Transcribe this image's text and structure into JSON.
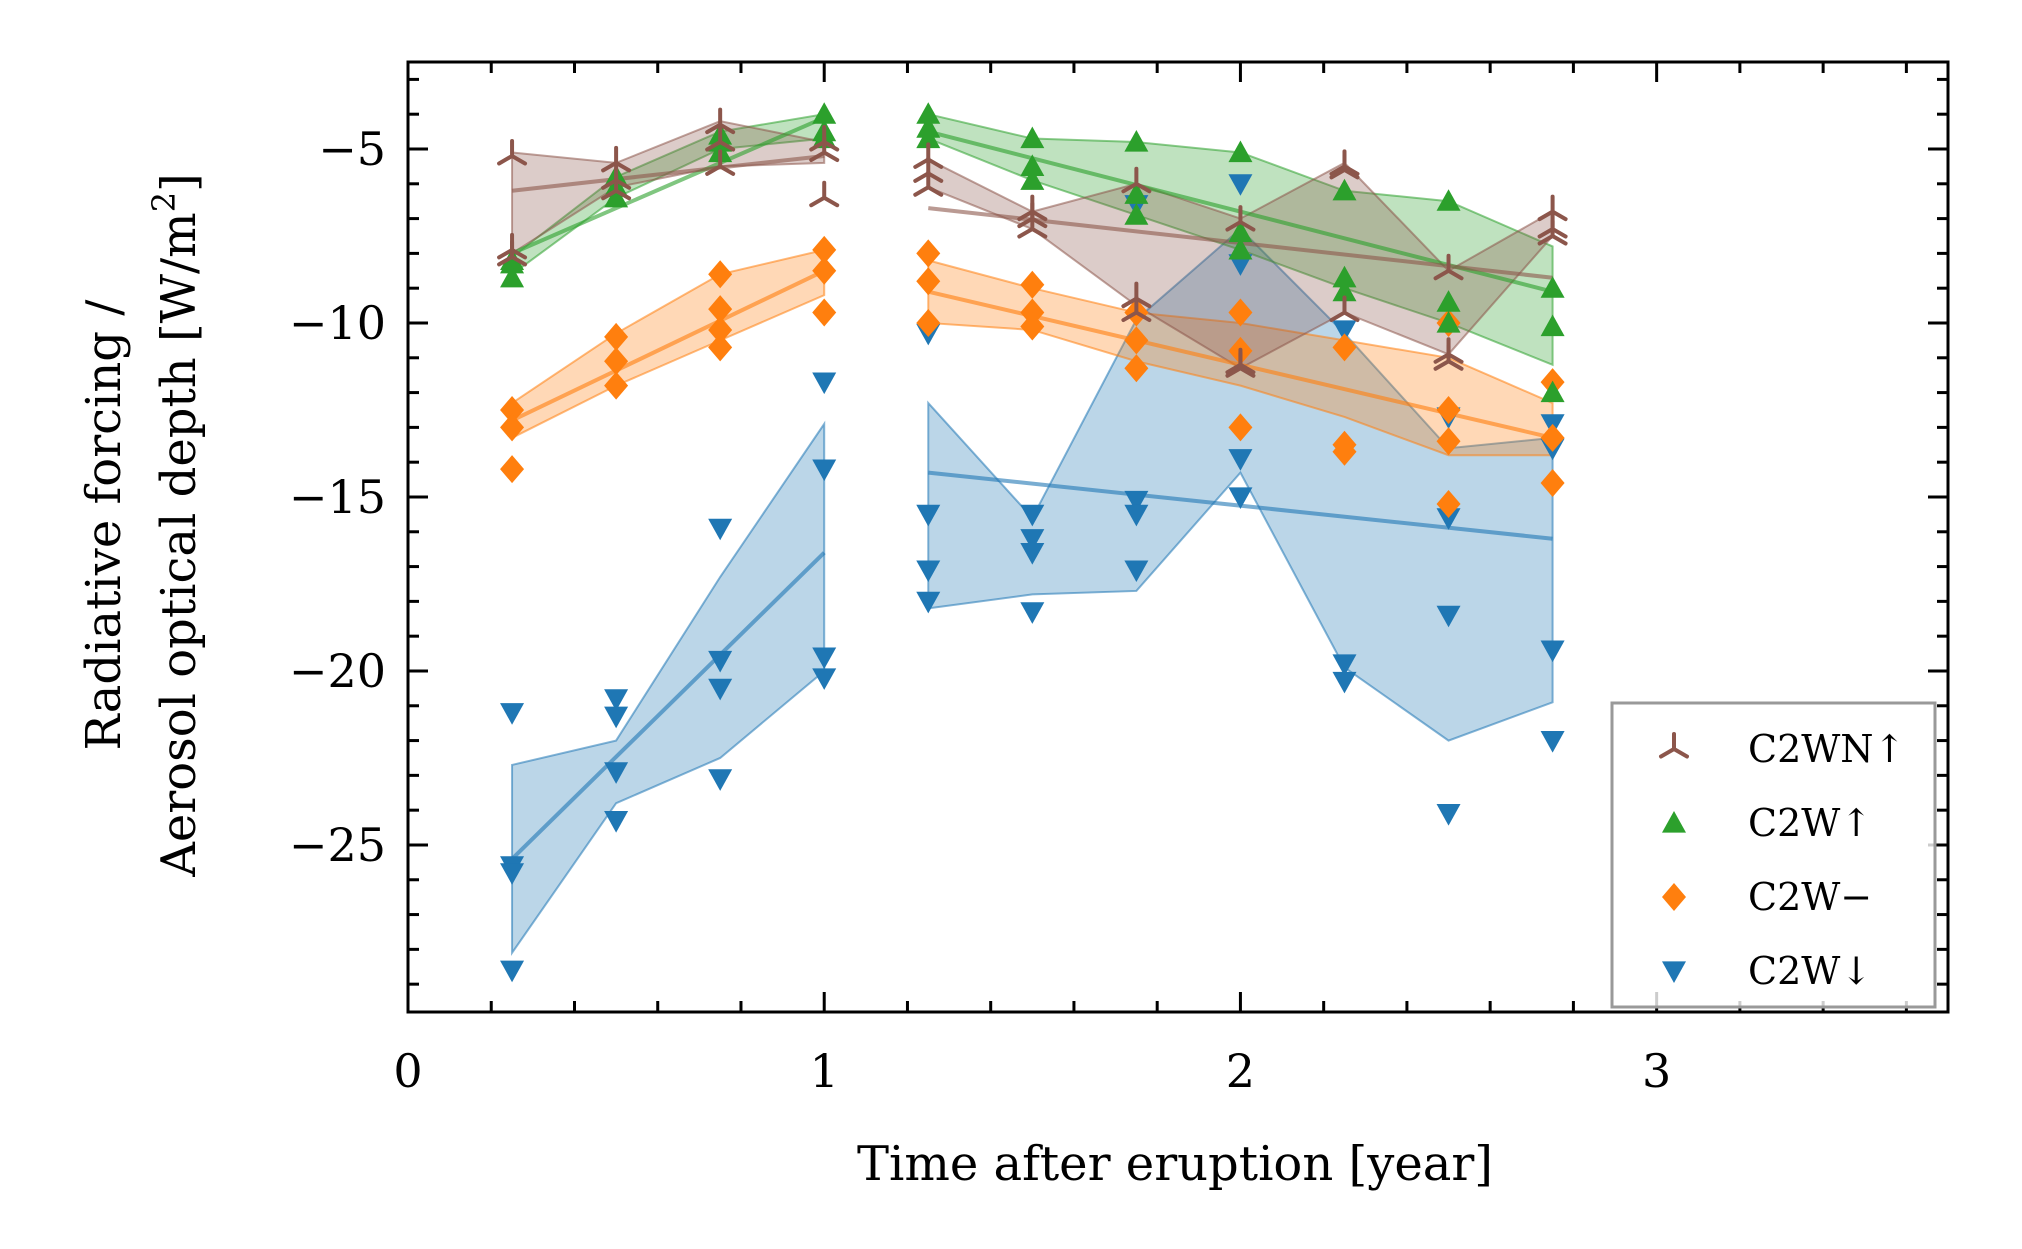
{
  "chart_data": {
    "type": "scatter",
    "title": "",
    "xlabel": "Time after eruption [year]",
    "ylabel_line1": "Radiative forcing /",
    "ylabel_line2": "Aerosol optical depth [W/m",
    "ylabel_sup": "2",
    "ylabel_end": "]",
    "xlim": [
      0,
      3.7
    ],
    "ylim": [
      -29.8,
      -2.5
    ],
    "xticks": [
      0,
      1,
      2,
      3
    ],
    "xtick_labels": [
      "0",
      "1",
      "2",
      "3"
    ],
    "yticks": [
      -25,
      -20,
      -15,
      -10,
      -5
    ],
    "ytick_labels": [
      "−25",
      "−20",
      "−15",
      "−10",
      "−5"
    ],
    "legend_position": "lower-right",
    "series": [
      {
        "name": "C2WN↑",
        "color": "#8c564b",
        "marker": "tri-up",
        "points": [
          [
            0.25,
            -5.2
          ],
          [
            0.25,
            -7.9
          ],
          [
            0.25,
            -8.1
          ],
          [
            0.5,
            -5.4
          ],
          [
            0.5,
            -5.9
          ],
          [
            0.5,
            -6.2
          ],
          [
            0.75,
            -4.3
          ],
          [
            0.75,
            -4.8
          ],
          [
            0.75,
            -5.5
          ],
          [
            1.0,
            -4.8
          ],
          [
            1.0,
            -5.1
          ],
          [
            1.0,
            -6.4
          ],
          [
            1.25,
            -5.3
          ],
          [
            1.25,
            -5.7
          ],
          [
            1.25,
            -6.1
          ],
          [
            1.5,
            -6.8
          ],
          [
            1.5,
            -7.0
          ],
          [
            1.5,
            -7.3
          ],
          [
            1.75,
            -6.0
          ],
          [
            1.75,
            -9.3
          ],
          [
            1.75,
            -9.7
          ],
          [
            2.0,
            -7.1
          ],
          [
            2.0,
            -11.2
          ],
          [
            2.0,
            -11.3
          ],
          [
            2.25,
            -5.5
          ],
          [
            2.25,
            -5.6
          ],
          [
            2.25,
            -9.7
          ],
          [
            2.5,
            -8.5
          ],
          [
            2.5,
            -10.9
          ],
          [
            2.5,
            -11.1
          ],
          [
            2.75,
            -6.8
          ],
          [
            2.75,
            -7.3
          ],
          [
            2.75,
            -7.5
          ]
        ],
        "fit_segments": [
          [
            [
              0.25,
              -6.2
            ],
            [
              1.0,
              -5.2
            ]
          ],
          [
            [
              1.25,
              -6.7
            ],
            [
              2.75,
              -8.7
            ]
          ]
        ],
        "band_segments": [
          {
            "x": [
              0.25,
              0.5,
              0.75,
              1.0
            ],
            "upper": [
              -5.1,
              -5.4,
              -4.2,
              -4.8
            ],
            "lower": [
              -8.0,
              -6.1,
              -5.5,
              -5.4
            ]
          },
          {
            "x": [
              1.25,
              1.5,
              1.75,
              2.0,
              2.25,
              2.5,
              2.75
            ],
            "upper": [
              -5.3,
              -6.8,
              -6.0,
              -7.0,
              -5.4,
              -8.5,
              -6.8
            ],
            "lower": [
              -6.1,
              -7.3,
              -9.5,
              -11.3,
              -9.7,
              -10.9,
              -7.5
            ]
          }
        ]
      },
      {
        "name": "C2W↑",
        "color": "#2ca02c",
        "marker": "triangle-up",
        "points": [
          [
            0.25,
            -8.2
          ],
          [
            0.25,
            -8.3
          ],
          [
            0.25,
            -8.7
          ],
          [
            0.5,
            -5.8
          ],
          [
            0.5,
            -6.1
          ],
          [
            0.5,
            -6.4
          ],
          [
            0.75,
            -4.6
          ],
          [
            0.75,
            -4.8
          ],
          [
            0.75,
            -5.1
          ],
          [
            1.0,
            -4.0
          ],
          [
            1.0,
            -4.5
          ],
          [
            1.0,
            -4.7
          ],
          [
            1.25,
            -4.0
          ],
          [
            1.25,
            -4.4
          ],
          [
            1.25,
            -4.7
          ],
          [
            1.5,
            -4.7
          ],
          [
            1.5,
            -5.5
          ],
          [
            1.5,
            -5.9
          ],
          [
            1.75,
            -4.8
          ],
          [
            1.75,
            -6.3
          ],
          [
            1.75,
            -6.9
          ],
          [
            2.0,
            -5.1
          ],
          [
            2.0,
            -7.4
          ],
          [
            2.0,
            -7.9
          ],
          [
            2.25,
            -6.2
          ],
          [
            2.25,
            -8.7
          ],
          [
            2.25,
            -9.1
          ],
          [
            2.5,
            -6.5
          ],
          [
            2.5,
            -9.4
          ],
          [
            2.5,
            -10.0
          ],
          [
            2.75,
            -9.0
          ],
          [
            2.75,
            -10.1
          ],
          [
            2.75,
            -12.0
          ]
        ],
        "fit_segments": [
          [
            [
              0.25,
              -8.0
            ],
            [
              1.0,
              -4.1
            ]
          ],
          [
            [
              1.25,
              -4.5
            ],
            [
              2.75,
              -9.1
            ]
          ]
        ],
        "band_segments": [
          {
            "x": [
              0.25,
              0.5,
              0.75,
              1.0
            ],
            "upper": [
              -8.1,
              -5.8,
              -4.5,
              -4.0
            ],
            "lower": [
              -8.6,
              -6.4,
              -5.0,
              -4.7
            ]
          },
          {
            "x": [
              1.25,
              1.5,
              1.75,
              2.0,
              2.25,
              2.5,
              2.75
            ],
            "upper": [
              -4.0,
              -4.7,
              -4.8,
              -5.1,
              -6.2,
              -6.5,
              -7.8
            ],
            "lower": [
              -4.7,
              -5.9,
              -6.9,
              -7.9,
              -9.0,
              -10.0,
              -11.2
            ]
          }
        ]
      },
      {
        "name": "C2W−",
        "color": "#ff7f0e",
        "marker": "diamond",
        "points": [
          [
            0.25,
            -12.5
          ],
          [
            0.25,
            -13.0
          ],
          [
            0.25,
            -14.2
          ],
          [
            0.5,
            -10.4
          ],
          [
            0.5,
            -11.1
          ],
          [
            0.5,
            -11.8
          ],
          [
            0.75,
            -8.6
          ],
          [
            0.75,
            -9.6
          ],
          [
            0.75,
            -10.2
          ],
          [
            0.75,
            -10.7
          ],
          [
            1.0,
            -7.9
          ],
          [
            1.0,
            -8.5
          ],
          [
            1.0,
            -9.7
          ],
          [
            1.25,
            -8.0
          ],
          [
            1.25,
            -8.8
          ],
          [
            1.25,
            -10.0
          ],
          [
            1.5,
            -8.9
          ],
          [
            1.5,
            -9.7
          ],
          [
            1.5,
            -10.1
          ],
          [
            1.75,
            -9.7
          ],
          [
            1.75,
            -10.5
          ],
          [
            1.75,
            -11.3
          ],
          [
            2.0,
            -9.7
          ],
          [
            2.0,
            -10.8
          ],
          [
            2.0,
            -13.0
          ],
          [
            2.25,
            -10.7
          ],
          [
            2.25,
            -13.5
          ],
          [
            2.25,
            -13.7
          ],
          [
            2.5,
            -10.0
          ],
          [
            2.5,
            -12.5
          ],
          [
            2.5,
            -13.4
          ],
          [
            2.5,
            -15.2
          ],
          [
            2.75,
            -11.7
          ],
          [
            2.75,
            -13.3
          ],
          [
            2.75,
            -14.6
          ]
        ],
        "fit_segments": [
          [
            [
              0.25,
              -12.8
            ],
            [
              1.0,
              -8.5
            ]
          ],
          [
            [
              1.25,
              -9.1
            ],
            [
              2.75,
              -13.3
            ]
          ]
        ],
        "band_segments": [
          {
            "x": [
              0.25,
              0.5,
              0.75,
              1.0
            ],
            "upper": [
              -12.3,
              -10.3,
              -8.6,
              -7.9
            ],
            "lower": [
              -13.3,
              -11.8,
              -10.5,
              -9.2
            ]
          },
          {
            "x": [
              1.25,
              1.5,
              1.75,
              2.0,
              2.25,
              2.5,
              2.75
            ],
            "upper": [
              -8.2,
              -9.0,
              -9.7,
              -10.0,
              -10.5,
              -11.0,
              -12.3
            ],
            "lower": [
              -10.0,
              -10.2,
              -11.1,
              -11.8,
              -12.7,
              -13.8,
              -13.8
            ]
          }
        ]
      },
      {
        "name": "C2W↓",
        "color": "#1f77b4",
        "marker": "triangle-down",
        "points": [
          [
            0.25,
            -21.2
          ],
          [
            0.25,
            -25.6
          ],
          [
            0.25,
            -25.8
          ],
          [
            0.25,
            -28.6
          ],
          [
            0.5,
            -20.8
          ],
          [
            0.5,
            -21.3
          ],
          [
            0.5,
            -22.9
          ],
          [
            0.5,
            -24.3
          ],
          [
            0.75,
            -15.9
          ],
          [
            0.75,
            -19.7
          ],
          [
            0.75,
            -20.5
          ],
          [
            0.75,
            -23.1
          ],
          [
            1.0,
            -11.7
          ],
          [
            1.0,
            -14.2
          ],
          [
            1.0,
            -19.6
          ],
          [
            1.0,
            -20.2
          ],
          [
            1.25,
            -10.3
          ],
          [
            1.25,
            -15.5
          ],
          [
            1.25,
            -17.1
          ],
          [
            1.25,
            -18.0
          ],
          [
            1.5,
            -15.5
          ],
          [
            1.5,
            -16.2
          ],
          [
            1.5,
            -16.6
          ],
          [
            1.5,
            -18.3
          ],
          [
            1.75,
            -6.6
          ],
          [
            1.75,
            -15.1
          ],
          [
            1.75,
            -15.5
          ],
          [
            1.75,
            -17.1
          ],
          [
            2.0,
            -6.0
          ],
          [
            2.0,
            -8.3
          ],
          [
            2.0,
            -13.9
          ],
          [
            2.0,
            -15.0
          ],
          [
            2.25,
            -10.2
          ],
          [
            2.25,
            -19.8
          ],
          [
            2.25,
            -20.3
          ],
          [
            2.5,
            -12.7
          ],
          [
            2.5,
            -15.6
          ],
          [
            2.5,
            -18.4
          ],
          [
            2.5,
            -24.1
          ],
          [
            2.75,
            -12.9
          ],
          [
            2.75,
            -13.6
          ],
          [
            2.75,
            -19.4
          ],
          [
            2.75,
            -22.0
          ]
        ],
        "fit_segments": [
          [
            [
              0.25,
              -25.4
            ],
            [
              1.0,
              -16.6
            ]
          ],
          [
            [
              1.25,
              -14.3
            ],
            [
              2.75,
              -16.2
            ]
          ]
        ],
        "band_segments": [
          {
            "x": [
              0.25,
              0.5,
              0.75,
              1.0
            ],
            "upper": [
              -22.7,
              -22.0,
              -17.3,
              -12.9
            ],
            "lower": [
              -28.1,
              -23.8,
              -22.5,
              -20.0
            ]
          },
          {
            "x": [
              1.25,
              1.5,
              1.75,
              2.0,
              2.25,
              2.5,
              2.75
            ],
            "upper": [
              -12.3,
              -15.6,
              -9.9,
              -7.3,
              -10.3,
              -13.6,
              -13.3
            ],
            "lower": [
              -18.2,
              -17.8,
              -17.7,
              -14.3,
              -19.9,
              -22.0,
              -20.9
            ]
          }
        ]
      }
    ]
  }
}
